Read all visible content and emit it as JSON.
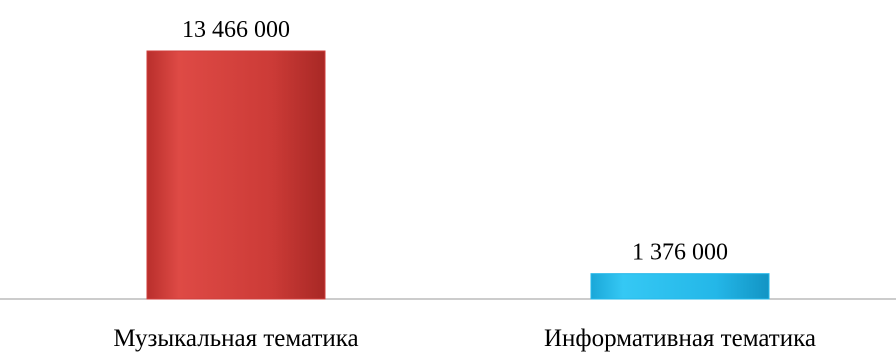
{
  "chart_data": {
    "type": "bar",
    "categories": [
      "Музыкальная тематика",
      "Информативная тематика"
    ],
    "series": [
      {
        "values": [
          13466000,
          1376000
        ],
        "data_labels": [
          "13 466 000",
          "1 376 000"
        ],
        "colors": [
          "#cf3e3b",
          "#23b8ea"
        ]
      }
    ],
    "ylim": [
      0,
      13466000
    ],
    "grid": false,
    "legend": "none"
  }
}
